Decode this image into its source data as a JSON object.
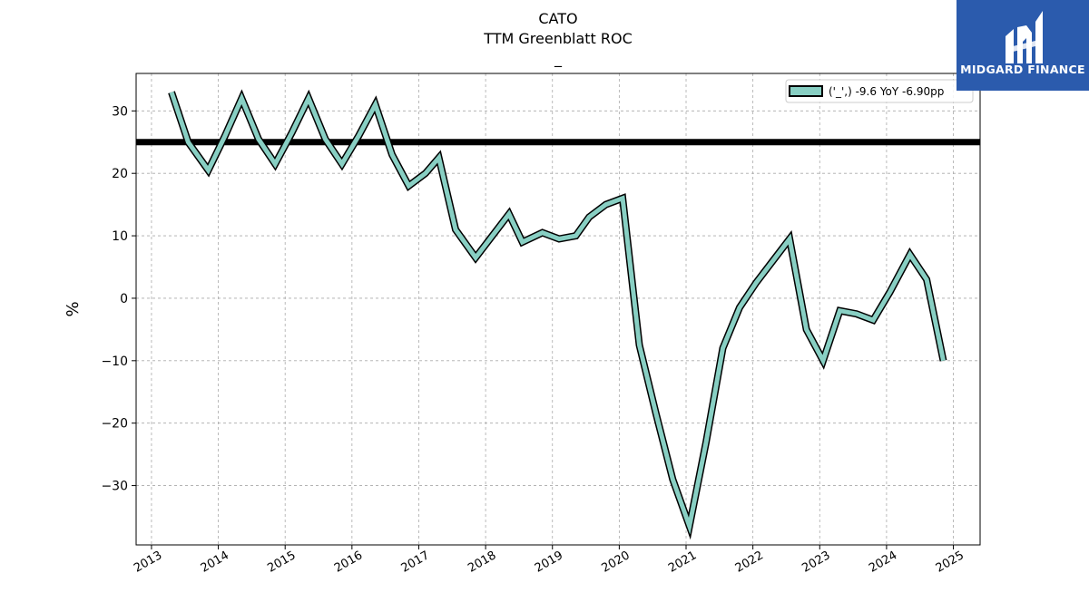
{
  "chart_data": {
    "type": "line",
    "title_lines": [
      "CATO",
      "TTM Greenblatt ROC",
      "_"
    ],
    "ylabel": "%",
    "xlabel": "",
    "xlim": [
      2012.77,
      2025.4
    ],
    "ylim": [
      -39.5,
      36
    ],
    "yticks": [
      -30,
      -20,
      -10,
      0,
      10,
      20,
      30
    ],
    "ytick_labels": [
      "−30",
      "−20",
      "−10",
      "0",
      "10",
      "20",
      "30"
    ],
    "xticks": [
      2013,
      2014,
      2015,
      2016,
      2017,
      2018,
      2019,
      2020,
      2021,
      2022,
      2023,
      2024,
      2025
    ],
    "xtick_labels": [
      "2013",
      "2014",
      "2015",
      "2016",
      "2017",
      "2018",
      "2019",
      "2020",
      "2021",
      "2022",
      "2023",
      "2024",
      "2025"
    ],
    "grid": true,
    "legend_position": "top-right",
    "reference_line": {
      "y": 25,
      "color": "#000000"
    },
    "series": [
      {
        "name": "('_',) -9.6 YoY -6.90pp",
        "color": "#88cfc3",
        "edge_color": "#000000",
        "x": [
          2013.3,
          2013.55,
          2013.85,
          2014.1,
          2014.35,
          2014.6,
          2014.85,
          2015.1,
          2015.35,
          2015.6,
          2015.85,
          2016.1,
          2016.35,
          2016.6,
          2016.85,
          2017.1,
          2017.3,
          2017.55,
          2017.85,
          2018.1,
          2018.35,
          2018.55,
          2018.85,
          2019.1,
          2019.35,
          2019.55,
          2019.8,
          2020.05,
          2020.3,
          2020.55,
          2020.8,
          2021.05,
          2021.3,
          2021.55,
          2021.8,
          2022.05,
          2022.3,
          2022.55,
          2022.8,
          2023.05,
          2023.3,
          2023.55,
          2023.8,
          2024.05,
          2024.35,
          2024.6,
          2024.85
        ],
        "y": [
          33,
          25,
          20.5,
          26,
          32,
          25.5,
          21.5,
          26.5,
          32,
          25.5,
          21.5,
          26,
          31,
          23,
          18,
          20,
          22.5,
          11,
          6.5,
          10,
          13.5,
          9,
          10.5,
          9.5,
          10,
          13,
          15,
          16,
          -7.5,
          -18.5,
          -29,
          -36.5,
          -23,
          -8,
          -1.5,
          2.5,
          6,
          9.5,
          -5,
          -10,
          -2,
          -2.5,
          -3.5,
          1,
          7,
          3,
          -10
        ]
      }
    ]
  },
  "logo": {
    "text": "MIDGARD FINANCE",
    "bg_color": "#2b5bad"
  }
}
